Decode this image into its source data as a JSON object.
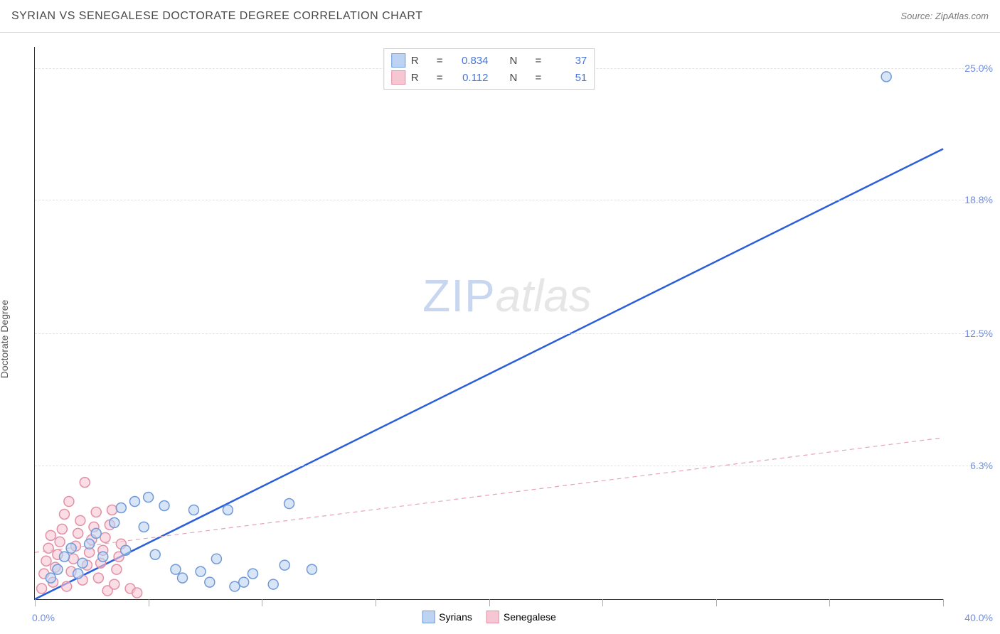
{
  "header": {
    "title": "SYRIAN VS SENEGALESE DOCTORATE DEGREE CORRELATION CHART",
    "source_label": "Source: ZipAtlas.com"
  },
  "chart": {
    "type": "scatter-with-regression",
    "ylabel": "Doctorate Degree",
    "xlim": [
      0,
      40
    ],
    "ylim": [
      0,
      26
    ],
    "x_axis_labels": {
      "min": "0.0%",
      "max": "40.0%"
    },
    "y_gridlines": [
      6.3,
      12.5,
      18.8,
      25.0
    ],
    "y_tick_labels": [
      "6.3%",
      "12.5%",
      "18.8%",
      "25.0%"
    ],
    "x_tick_positions": [
      0,
      5,
      10,
      15,
      20,
      25,
      30,
      35,
      40
    ],
    "background_color": "#ffffff",
    "grid_color": "#e2e2e2",
    "axis_color": "#333333",
    "marker_radius": 7,
    "marker_stroke_width": 1.5,
    "watermark": {
      "left": "ZIP",
      "right": "atlas",
      "left_color": "#c8d7ef",
      "right_color": "#e6e6e6"
    },
    "series": [
      {
        "name": "Syrians",
        "fill": "#bcd3f2",
        "stroke": "#6f99d8",
        "fill_opacity": 0.6,
        "R": "0.834",
        "N": "37",
        "regression": {
          "x1": 0,
          "y1": 0,
          "x2": 40,
          "y2": 21.2,
          "color": "#2a5edb",
          "width": 2.5,
          "dash": ""
        },
        "points": [
          [
            0.7,
            1.0
          ],
          [
            1.0,
            1.4
          ],
          [
            1.3,
            2.0
          ],
          [
            1.6,
            2.4
          ],
          [
            1.9,
            1.2
          ],
          [
            2.1,
            1.7
          ],
          [
            2.4,
            2.6
          ],
          [
            2.7,
            3.1
          ],
          [
            3.0,
            2.0
          ],
          [
            3.5,
            3.6
          ],
          [
            3.8,
            4.3
          ],
          [
            4.0,
            2.3
          ],
          [
            4.4,
            4.6
          ],
          [
            4.8,
            3.4
          ],
          [
            5.0,
            4.8
          ],
          [
            5.3,
            2.1
          ],
          [
            5.7,
            4.4
          ],
          [
            6.2,
            1.4
          ],
          [
            6.5,
            1.0
          ],
          [
            7.0,
            4.2
          ],
          [
            7.3,
            1.3
          ],
          [
            7.7,
            0.8
          ],
          [
            8.0,
            1.9
          ],
          [
            8.5,
            4.2
          ],
          [
            8.8,
            0.6
          ],
          [
            9.2,
            0.8
          ],
          [
            9.6,
            1.2
          ],
          [
            10.5,
            0.7
          ],
          [
            11.0,
            1.6
          ],
          [
            11.2,
            4.5
          ],
          [
            12.2,
            1.4
          ],
          [
            37.5,
            24.6
          ]
        ]
      },
      {
        "name": "Senegalese",
        "fill": "#f6c7d3",
        "stroke": "#e290a6",
        "fill_opacity": 0.6,
        "R": "0.112",
        "N": "51",
        "regression": {
          "x1": 0,
          "y1": 2.2,
          "x2": 40,
          "y2": 7.6,
          "color": "#e4a5b4",
          "width": 1.2,
          "dash": "6,5"
        },
        "points": [
          [
            0.3,
            0.5
          ],
          [
            0.4,
            1.2
          ],
          [
            0.5,
            1.8
          ],
          [
            0.6,
            2.4
          ],
          [
            0.7,
            3.0
          ],
          [
            0.8,
            0.8
          ],
          [
            0.9,
            1.5
          ],
          [
            1.0,
            2.1
          ],
          [
            1.1,
            2.7
          ],
          [
            1.2,
            3.3
          ],
          [
            1.3,
            4.0
          ],
          [
            1.4,
            0.6
          ],
          [
            1.5,
            4.6
          ],
          [
            1.6,
            1.3
          ],
          [
            1.7,
            1.9
          ],
          [
            1.8,
            2.5
          ],
          [
            1.9,
            3.1
          ],
          [
            2.0,
            3.7
          ],
          [
            2.1,
            0.9
          ],
          [
            2.2,
            5.5
          ],
          [
            2.3,
            1.6
          ],
          [
            2.4,
            2.2
          ],
          [
            2.5,
            2.8
          ],
          [
            2.6,
            3.4
          ],
          [
            2.7,
            4.1
          ],
          [
            2.8,
            1.0
          ],
          [
            2.9,
            1.7
          ],
          [
            3.0,
            2.3
          ],
          [
            3.1,
            2.9
          ],
          [
            3.2,
            0.4
          ],
          [
            3.3,
            3.5
          ],
          [
            3.4,
            4.2
          ],
          [
            3.5,
            0.7
          ],
          [
            3.6,
            1.4
          ],
          [
            3.7,
            2.0
          ],
          [
            3.8,
            2.6
          ],
          [
            4.2,
            0.5
          ],
          [
            4.5,
            0.3
          ]
        ]
      }
    ],
    "legend_top": {
      "r_key": "R",
      "n_key": "N",
      "eq": "="
    },
    "legend_bottom": [
      {
        "label": "Syrians",
        "fill": "#bcd3f2",
        "stroke": "#6f99d8"
      },
      {
        "label": "Senegalese",
        "fill": "#f6c7d3",
        "stroke": "#e290a6"
      }
    ]
  }
}
